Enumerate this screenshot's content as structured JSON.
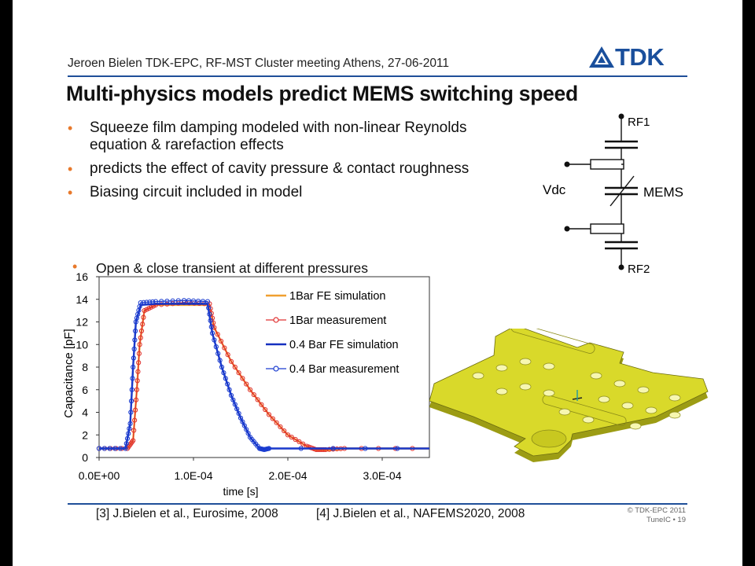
{
  "header": {
    "text": "Jeroen Bielen TDK-EPC, RF-MST Cluster meeting Athens, 27-06-2011",
    "logo": "TDK"
  },
  "title": "Multi-physics models predict MEMS switching speed",
  "bullets": [
    {
      "line1": "Squeeze film damping modeled with non-linear Reynolds",
      "line2": "equation & rarefaction effects"
    },
    {
      "line1": "predicts the effect of cavity pressure & contact roughness"
    },
    {
      "line1": "Biasing circuit included in model"
    }
  ],
  "bullet_glyph": "•",
  "sub_bullet": "Open & close transient at different pressures",
  "circuit": {
    "rf1": "RF1",
    "rf2": "RF2",
    "vdc": "Vdc",
    "mems": "MEMS"
  },
  "chart_data": {
    "type": "line",
    "xlabel": "time [s]",
    "ylabel": "Capacitance [pF]",
    "xlim": [
      0,
      0.00035
    ],
    "ylim": [
      0,
      16
    ],
    "x_ticks": [
      0,
      0.0001,
      0.0002,
      0.0003
    ],
    "x_tick_labels": [
      "0.0E+00",
      "1.0E-04",
      "2.0E-04",
      "3.0E-04"
    ],
    "y_ticks": [
      0,
      2,
      4,
      6,
      8,
      10,
      12,
      14,
      16
    ],
    "y_tick_labels": [
      "0",
      "2",
      "4",
      "6",
      "8",
      "10",
      "12",
      "14",
      "16"
    ],
    "legend_position": "top-right",
    "series": [
      {
        "name": "1Bar FE simulation",
        "color": "#f0a030",
        "marker": "none",
        "x": [
          0,
          3e-05,
          3.6e-05,
          4e-05,
          4.3e-05,
          4.8e-05,
          6e-05,
          9e-05,
          0.000117,
          0.000122,
          0.00014,
          0.00016,
          0.00018,
          0.0002,
          0.00022,
          0.00023,
          0.00024,
          0.00026,
          0.00035
        ],
        "y": [
          0.8,
          0.8,
          1.5,
          6,
          10,
          13,
          13.5,
          13.5,
          13.5,
          11.5,
          8.5,
          6,
          3.8,
          2,
          1,
          0.6,
          0.6,
          0.8,
          0.8
        ]
      },
      {
        "name": "1Bar measurement",
        "color": "#e03030",
        "marker": "circle",
        "x": [
          0,
          3e-05,
          3.6e-05,
          4e-05,
          4.3e-05,
          4.8e-05,
          6e-05,
          9e-05,
          0.000117,
          0.000122,
          0.00014,
          0.00016,
          0.00018,
          0.0002,
          0.00022,
          0.00023,
          0.00024,
          0.00026,
          0.00035
        ],
        "y": [
          0.8,
          0.8,
          1.5,
          6,
          10,
          13,
          13.5,
          13.7,
          13.6,
          11.5,
          8.5,
          6,
          3.8,
          2,
          1,
          0.7,
          0.7,
          0.8,
          0.8
        ]
      },
      {
        "name": "0.4 Bar FE simulation",
        "color": "#1530c0",
        "marker": "none",
        "x": [
          0,
          2.8e-05,
          3.3e-05,
          3.6e-05,
          3.9e-05,
          4.4e-05,
          6e-05,
          9e-05,
          0.000115,
          0.00012,
          0.00013,
          0.00014,
          0.00015,
          0.00016,
          0.00017,
          0.000175,
          0.00018,
          0.00035
        ],
        "y": [
          0.8,
          0.8,
          3,
          8,
          12,
          13.5,
          13.6,
          13.6,
          13.6,
          11,
          8,
          5.5,
          3.5,
          1.8,
          0.8,
          0.7,
          0.8,
          0.8
        ]
      },
      {
        "name": "0.4 Bar measurement",
        "color": "#1a3cd0",
        "marker": "circle",
        "x": [
          0,
          2.8e-05,
          3.3e-05,
          3.6e-05,
          3.9e-05,
          4.4e-05,
          6e-05,
          9e-05,
          0.000115,
          0.00012,
          0.00013,
          0.00014,
          0.00015,
          0.00016,
          0.00017,
          0.000175,
          0.00018,
          0.00035
        ],
        "y": [
          0.8,
          0.8,
          3,
          8,
          12,
          13.7,
          13.8,
          13.9,
          13.8,
          11,
          8,
          5.5,
          3.5,
          1.8,
          0.8,
          0.7,
          0.8,
          0.8
        ]
      }
    ]
  },
  "references": {
    "ref1": "[3] J.Bielen et al., Eurosime, 2008",
    "ref2": "[4] J.Bielen et al., NAFEMS2020, 2008"
  },
  "footer": {
    "copyright": "© TDK-EPC 2011",
    "page": "TuneIC • 19"
  },
  "colors": {
    "accent": "#1f4f99",
    "bullet": "#e8792b",
    "mems_plate": "#d9d92a"
  }
}
